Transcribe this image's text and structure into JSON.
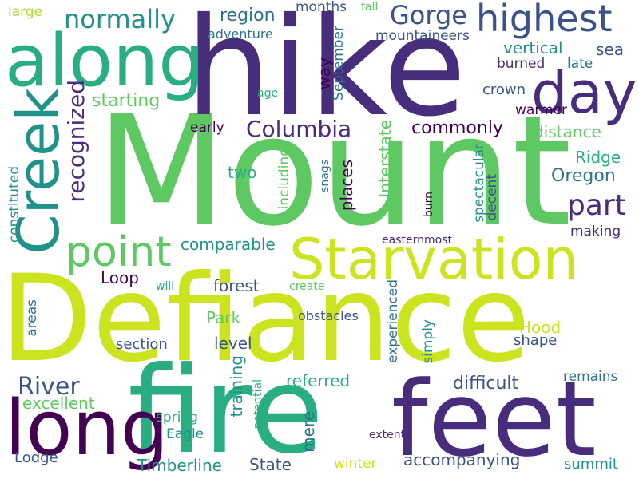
{
  "colors": {
    "background": "#ffffff",
    "c1": "#440154",
    "c2": "#472d7b",
    "c3": "#3b528b",
    "c4": "#2c728e",
    "c5": "#21918c",
    "c6": "#28ae80",
    "c7": "#5ec962",
    "c8": "#addc30",
    "c9": "#cce41f"
  },
  "words": [
    {
      "key": "mount",
      "text": "Mount"
    },
    {
      "key": "defiance",
      "text": "Defiance"
    },
    {
      "key": "hike",
      "text": "hike"
    },
    {
      "key": "fire",
      "text": "fire"
    },
    {
      "key": "feet",
      "text": "feet"
    },
    {
      "key": "along",
      "text": "along"
    },
    {
      "key": "starvation",
      "text": "Starvation"
    },
    {
      "key": "long",
      "text": "long"
    },
    {
      "key": "creek",
      "text": "Creek"
    },
    {
      "key": "highest",
      "text": "highest"
    },
    {
      "key": "day",
      "text": "day"
    },
    {
      "key": "point",
      "text": "point"
    },
    {
      "key": "normally",
      "text": "normally"
    },
    {
      "key": "gorge",
      "text": "Gorge"
    },
    {
      "key": "recognized",
      "text": "recognized"
    },
    {
      "key": "columbia",
      "text": "Columbia"
    },
    {
      "key": "part",
      "text": "part"
    },
    {
      "key": "river",
      "text": "River"
    },
    {
      "key": "commonly",
      "text": "commonly"
    },
    {
      "key": "starting",
      "text": "starting"
    },
    {
      "key": "region",
      "text": "region"
    },
    {
      "key": "adventure",
      "text": "adventure"
    },
    {
      "key": "months",
      "text": "months"
    },
    {
      "key": "fall",
      "text": "fall"
    },
    {
      "key": "large",
      "text": "large"
    },
    {
      "key": "way",
      "text": "way"
    },
    {
      "key": "september",
      "text": "September"
    },
    {
      "key": "mountaineers",
      "text": "mountaineers"
    },
    {
      "key": "vertical",
      "text": "vertical"
    },
    {
      "key": "sea",
      "text": "sea"
    },
    {
      "key": "burned",
      "text": "burned"
    },
    {
      "key": "late",
      "text": "late"
    },
    {
      "key": "age",
      "text": "age"
    },
    {
      "key": "crown",
      "text": "crown"
    },
    {
      "key": "warmer",
      "text": "warmer"
    },
    {
      "key": "early",
      "text": "early"
    },
    {
      "key": "distance",
      "text": "distance"
    },
    {
      "key": "ridge",
      "text": "Ridge"
    },
    {
      "key": "oregon",
      "text": "Oregon"
    },
    {
      "key": "two",
      "text": "two"
    },
    {
      "key": "snags",
      "text": "snags"
    },
    {
      "key": "including",
      "text": "including"
    },
    {
      "key": "places",
      "text": "places"
    },
    {
      "key": "interstate",
      "text": "Interstate"
    },
    {
      "key": "spectacular",
      "text": "spectacular"
    },
    {
      "key": "decent",
      "text": "decent"
    },
    {
      "key": "burn",
      "text": "burn"
    },
    {
      "key": "constituted",
      "text": "constituted"
    },
    {
      "key": "making",
      "text": "making"
    },
    {
      "key": "comparable",
      "text": "comparable"
    },
    {
      "key": "easternmost",
      "text": "easternmost"
    },
    {
      "key": "loop",
      "text": "Loop"
    },
    {
      "key": "will",
      "text": "will"
    },
    {
      "key": "forest",
      "text": "forest"
    },
    {
      "key": "create",
      "text": "create"
    },
    {
      "key": "areas",
      "text": "areas"
    },
    {
      "key": "park",
      "text": "Park"
    },
    {
      "key": "obstacles",
      "text": "obstacles"
    },
    {
      "key": "hood",
      "text": "Hood"
    },
    {
      "key": "shape",
      "text": "shape"
    },
    {
      "key": "section",
      "text": "section"
    },
    {
      "key": "level",
      "text": "level"
    },
    {
      "key": "experienced",
      "text": "experienced"
    },
    {
      "key": "simply",
      "text": "simply"
    },
    {
      "key": "referred",
      "text": "referred"
    },
    {
      "key": "remains",
      "text": "remains"
    },
    {
      "key": "difficult",
      "text": "difficult"
    },
    {
      "key": "excellent",
      "text": "excellent"
    },
    {
      "key": "training",
      "text": "training"
    },
    {
      "key": "potential",
      "text": "potential"
    },
    {
      "key": "spring",
      "text": "spring"
    },
    {
      "key": "eagle",
      "text": "Eagle"
    },
    {
      "key": "mere",
      "text": "mere"
    },
    {
      "key": "extent",
      "text": "extent"
    },
    {
      "key": "lodge",
      "text": "Lodge"
    },
    {
      "key": "accompanying",
      "text": "accompanying"
    },
    {
      "key": "timberline",
      "text": "Timberline"
    },
    {
      "key": "state",
      "text": "State"
    },
    {
      "key": "winter",
      "text": "winter"
    },
    {
      "key": "summit",
      "text": "summit"
    }
  ]
}
